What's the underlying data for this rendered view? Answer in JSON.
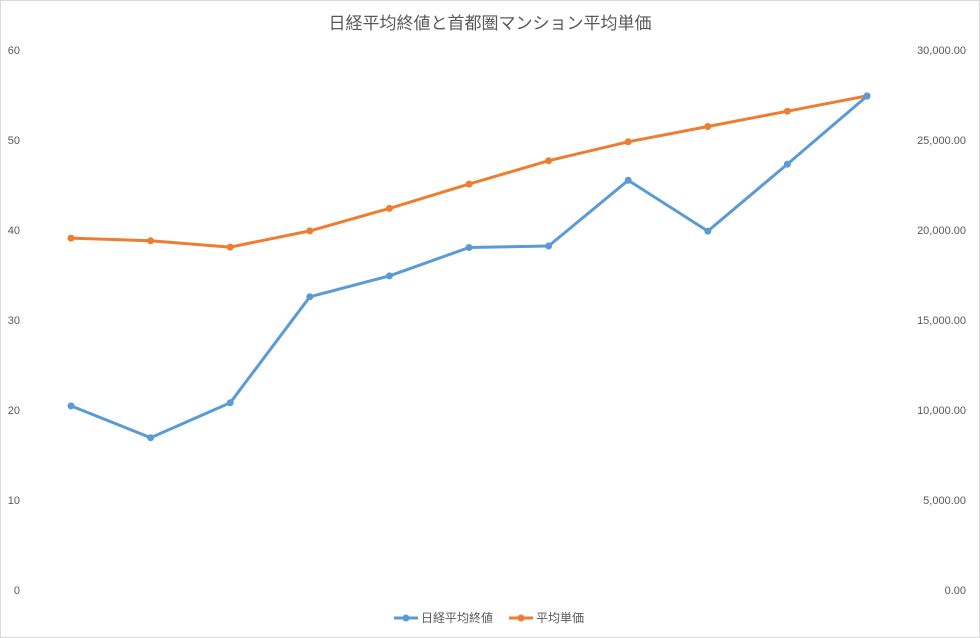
{
  "chart_data": {
    "type": "line",
    "title": "日経平均終値と首都圏マンション平均単価",
    "categories": [
      "",
      "",
      "",
      "",
      "",
      "",
      "",
      "",
      "",
      "",
      ""
    ],
    "series": [
      {
        "name": "日経平均終値",
        "axis": "right",
        "color": "#5b9bd5",
        "values": [
          10230,
          8460,
          10400,
          16290,
          17450,
          19030,
          19110,
          22760,
          19940,
          23660,
          27440
        ]
      },
      {
        "name": "平均単価",
        "axis": "left",
        "color": "#ed7d31",
        "values": [
          39.1,
          38.8,
          38.1,
          39.9,
          42.4,
          45.1,
          47.7,
          49.8,
          51.5,
          53.2,
          54.9
        ]
      }
    ],
    "y_left": {
      "ylim": [
        0,
        60
      ],
      "ticks": [
        "0",
        "10",
        "20",
        "30",
        "40",
        "50",
        "60"
      ]
    },
    "y_right": {
      "ylim": [
        0,
        30000
      ],
      "ticks": [
        "0.00",
        "5,000.00",
        "10,000.00",
        "15,000.00",
        "20,000.00",
        "25,000.00",
        "30,000.00"
      ]
    },
    "grid": false,
    "legend": "bottom"
  }
}
